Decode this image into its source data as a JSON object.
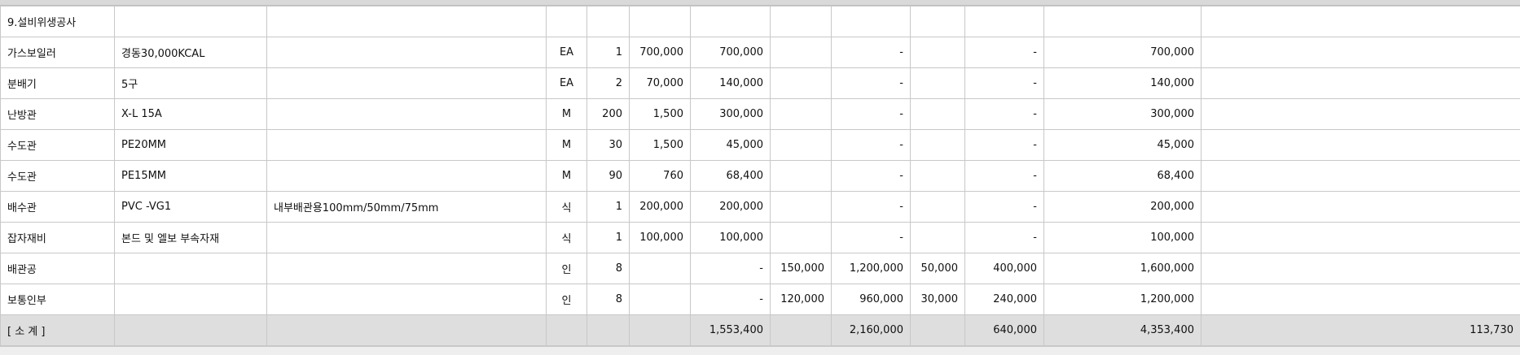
{
  "section_title": "9.설비위생공사",
  "rows": [
    [
      "가스보일러",
      "경동30,000KCAL",
      "",
      "EA",
      "1",
      "700,000",
      "700,000",
      "",
      "-",
      "",
      "-",
      "700,000",
      ""
    ],
    [
      "분배기",
      "5구",
      "",
      "EA",
      "2",
      "70,000",
      "140,000",
      "",
      "-",
      "",
      "-",
      "140,000",
      ""
    ],
    [
      "난방관",
      "X-L 15A",
      "",
      "M",
      "200",
      "1,500",
      "300,000",
      "",
      "-",
      "",
      "-",
      "300,000",
      ""
    ],
    [
      "수도관",
      "PE20MM",
      "",
      "M",
      "30",
      "1,500",
      "45,000",
      "",
      "-",
      "",
      "-",
      "45,000",
      ""
    ],
    [
      "수도관",
      "PE15MM",
      "",
      "M",
      "90",
      "760",
      "68,400",
      "",
      "-",
      "",
      "-",
      "68,400",
      ""
    ],
    [
      "배수관",
      "PVC -VG1",
      "내부배관용100mm/50mm/75mm",
      "식",
      "1",
      "200,000",
      "200,000",
      "",
      "-",
      "",
      "-",
      "200,000",
      ""
    ],
    [
      "잡자재비",
      "본드 및 엘보 부속자재",
      "",
      "식",
      "1",
      "100,000",
      "100,000",
      "",
      "-",
      "",
      "-",
      "100,000",
      ""
    ],
    [
      "배관공",
      "",
      "",
      "인",
      "8",
      "",
      "-",
      "150,000",
      "1,200,000",
      "50,000",
      "400,000",
      "1,600,000",
      ""
    ],
    [
      "보통인부",
      "",
      "",
      "인",
      "8",
      "",
      "-",
      "120,000",
      "960,000",
      "30,000",
      "240,000",
      "1,200,000",
      ""
    ]
  ],
  "subtotal": [
    "[ 소          계 ]",
    "",
    "",
    "",
    "",
    "",
    "1,553,400",
    "",
    "2,160,000",
    "",
    "640,000",
    "4,353,400",
    "113,730"
  ]
}
